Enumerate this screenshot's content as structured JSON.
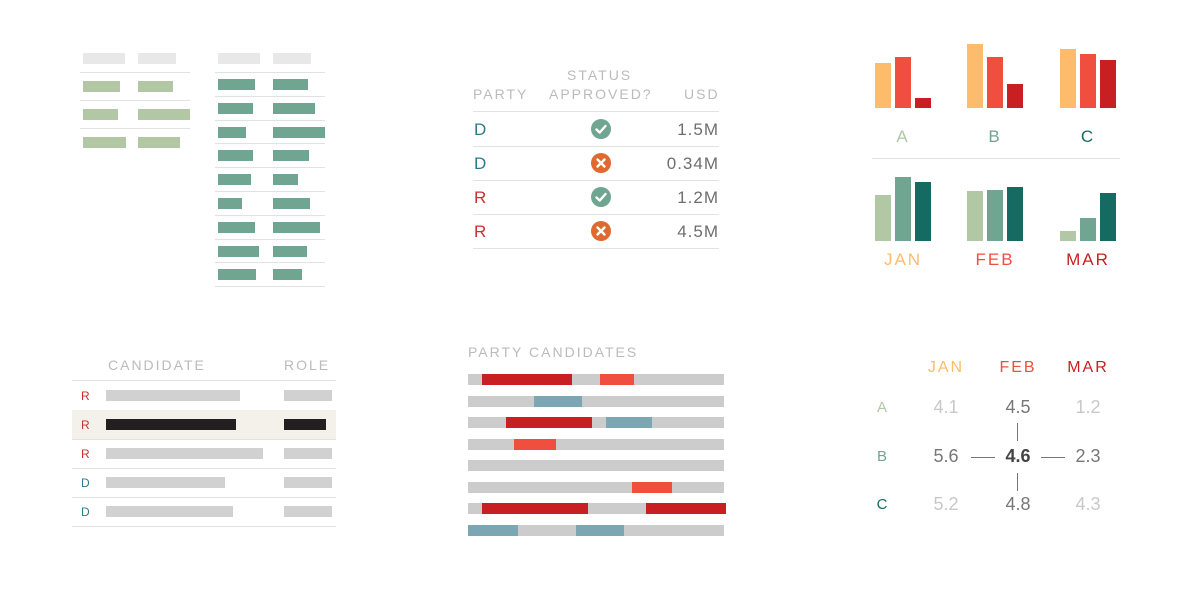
{
  "colors": {
    "sage": "#b2c7a4",
    "teal": "#6fa591",
    "dark_teal": "#156b62",
    "peach": "#fcbc6c",
    "red": "#f04e3f",
    "dark_red": "#c81f23",
    "blue": "#7da6b4",
    "gray": "#cccccc",
    "rep": "#c8312f",
    "dem": "#2e7a8c",
    "approve": "#6fa591",
    "reject": "#e0692f"
  },
  "party_table": {
    "headers": {
      "party": "PARTY",
      "status_line1": "STATUS",
      "status_line2": "APPROVED?",
      "usd": "USD"
    },
    "rows": [
      {
        "party": "D",
        "status": "approved",
        "icon": "check-circle-icon",
        "usd": "1.5M"
      },
      {
        "party": "D",
        "status": "rejected",
        "icon": "x-circle-icon",
        "usd": "0.34M"
      },
      {
        "party": "R",
        "status": "approved",
        "icon": "check-circle-icon",
        "usd": "1.2M"
      },
      {
        "party": "R",
        "status": "rejected",
        "icon": "x-circle-icon",
        "usd": "4.5M"
      }
    ]
  },
  "small_multiples": {
    "top": {
      "groups": [
        {
          "label": "A",
          "values": [
            0.7,
            0.8,
            0.15
          ]
        },
        {
          "label": "B",
          "values": [
            1.0,
            0.8,
            0.37
          ]
        },
        {
          "label": "C",
          "values": [
            0.92,
            0.85,
            0.75
          ]
        }
      ],
      "series_colors": [
        "#fcbc6c",
        "#f04e3f",
        "#c81f23"
      ],
      "label_colors": [
        "#b2c7a4",
        "#6fa591",
        "#156b62"
      ]
    },
    "bottom": {
      "groups": [
        {
          "label": "JAN",
          "values": [
            0.72,
            1.0,
            0.92
          ]
        },
        {
          "label": "FEB",
          "values": [
            0.78,
            0.8,
            0.84
          ]
        },
        {
          "label": "MAR",
          "values": [
            0.16,
            0.36,
            0.75
          ]
        }
      ],
      "series_colors": [
        "#b2c7a4",
        "#6fa591",
        "#156b62"
      ],
      "label_colors": [
        "#fcbc6c",
        "#f04e3f",
        "#c81f23"
      ]
    }
  },
  "candidate_table": {
    "headers": {
      "candidate": "CANDIDATE",
      "role": "ROLE"
    },
    "rows": [
      {
        "party": "R",
        "highlighted": false
      },
      {
        "party": "R",
        "highlighted": true
      },
      {
        "party": "R",
        "highlighted": false
      },
      {
        "party": "D",
        "highlighted": false
      },
      {
        "party": "D",
        "highlighted": false
      }
    ]
  },
  "party_candidates": {
    "title": "PARTY CANDIDATES"
  },
  "heatmap": {
    "columns": [
      "JAN",
      "FEB",
      "MAR"
    ],
    "column_colors": [
      "#fcbc6c",
      "#f04e3f",
      "#c81f23"
    ],
    "rows": [
      "A",
      "B",
      "C"
    ],
    "row_colors": [
      "#b2c7a4",
      "#6fa591",
      "#156b62"
    ],
    "values": [
      [
        "4.1",
        "4.5",
        "1.2"
      ],
      [
        "5.6",
        "4.6",
        "2.3"
      ],
      [
        "5.2",
        "4.8",
        "4.3"
      ]
    ],
    "focus": {
      "row": 1,
      "col": 1
    }
  }
}
